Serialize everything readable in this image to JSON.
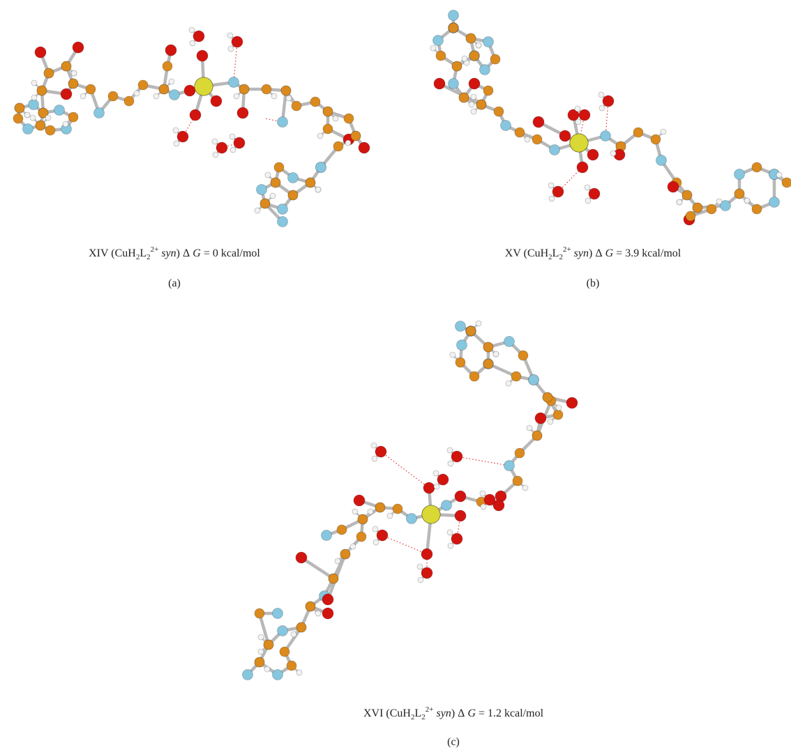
{
  "figure": {
    "panels": [
      {
        "caption": [
          {
            "text": "XIV ("
          },
          {
            "text": "CuH"
          },
          {
            "text": "2",
            "style": "sub"
          },
          {
            "text": "L"
          },
          {
            "text": "2",
            "style": "sub"
          },
          {
            "text": "2+",
            "style": "sup"
          },
          {
            "text": "syn",
            "style": "italic"
          },
          {
            "text": ") Δ"
          },
          {
            "text": "G",
            "style": "italic"
          },
          {
            "text": "="
          }
        ],
        "delta_g": 0,
        "unit": "kcal/mol",
        "panel_label": "(a)"
      },
      {
        "caption": [
          {
            "text": "XV ("
          },
          {
            "text": "CuH"
          },
          {
            "text": "2",
            "style": "sub"
          },
          {
            "text": "L"
          },
          {
            "text": "2",
            "style": "sub"
          },
          {
            "text": "2+",
            "style": "sup"
          },
          {
            "text": "syn",
            "style": "italic"
          },
          {
            "text": ") Δ"
          },
          {
            "text": "G",
            "style": "italic"
          },
          {
            "text": "="
          }
        ],
        "delta_g": 3.9,
        "unit": "kcal/mol",
        "panel_label": "(b)"
      },
      {
        "caption": [
          {
            "text": "XVI ("
          },
          {
            "text": "CuH"
          },
          {
            "text": "2",
            "style": "sub"
          },
          {
            "text": "L"
          },
          {
            "text": "2",
            "style": "sub"
          },
          {
            "text": "2+",
            "style": "sup"
          },
          {
            "text": "syn",
            "style": "italic"
          },
          {
            "text": ") Δ"
          },
          {
            "text": "G",
            "style": "italic"
          },
          {
            "text": "="
          }
        ],
        "delta_g": 1.2,
        "unit": "kcal/mol",
        "panel_label": "(c)"
      }
    ]
  }
}
